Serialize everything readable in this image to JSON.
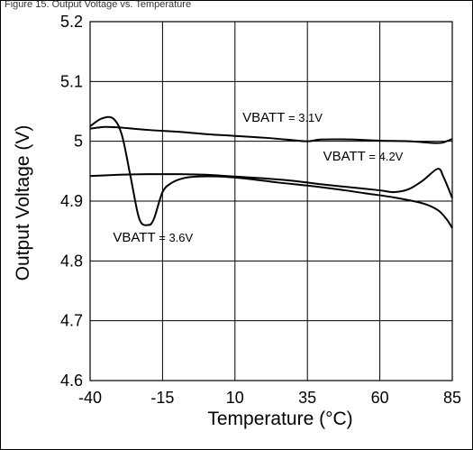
{
  "caption": "Figure 15. Output Voltage vs. Temperature",
  "chart_data": {
    "type": "line",
    "title": "",
    "xlabel": "Temperature (°C)",
    "ylabel": "Output Voltage (V)",
    "xlim": [
      -40,
      85
    ],
    "ylim": [
      4.6,
      5.2
    ],
    "xticks": [
      -40,
      -15,
      10,
      35,
      60,
      85
    ],
    "xtick_labels": [
      "-40",
      "-15",
      "10",
      "35",
      "60",
      "85"
    ],
    "yticks": [
      4.6,
      4.7,
      4.8,
      4.9,
      5.0,
      5.1,
      5.2
    ],
    "ytick_labels": [
      "4.6",
      "4.7",
      "4.8",
      "4.9",
      "5",
      "5.1",
      "5.2"
    ],
    "grid": true,
    "series": [
      {
        "name": "VBATT = 3.1V",
        "label_main": "VBATT",
        "label_suffix": " = 3.1V",
        "label_at": [
          12.6,
          5.033
        ],
        "x": [
          -40,
          -35,
          -30,
          -20,
          -10,
          0,
          10,
          20,
          30,
          35,
          40,
          50,
          60,
          70,
          80,
          83,
          85
        ],
        "y": [
          5.021,
          5.024,
          5.023,
          5.019,
          5.016,
          5.012,
          5.009,
          5.006,
          5.002,
          5.0,
          5.003,
          5.003,
          5.001,
          5.0,
          4.997,
          5.0,
          5.004
        ]
      },
      {
        "name": "VBATT = 4.2V",
        "label_main": "VBATT",
        "label_suffix": " = 4.2V",
        "label_at": [
          40.4,
          4.968
        ],
        "x": [
          -40,
          -30,
          -20,
          -10,
          0,
          10,
          20,
          30,
          40,
          50,
          60,
          65,
          70,
          75,
          80,
          82,
          85
        ],
        "y": [
          4.942,
          4.944,
          4.945,
          4.945,
          4.944,
          4.941,
          4.938,
          4.934,
          4.928,
          4.923,
          4.918,
          4.915,
          4.92,
          4.935,
          4.954,
          4.94,
          4.905
        ]
      },
      {
        "name": "VBATT = 3.6V",
        "label_main": "VBATT",
        "label_suffix": " = 3.6V",
        "label_at": [
          -32.1,
          4.832
        ],
        "x": [
          -40,
          -36,
          -32,
          -29,
          -26,
          -23,
          -20,
          -18,
          -15,
          -12,
          -8,
          -3,
          5,
          15,
          25,
          35,
          45,
          55,
          65,
          75,
          80,
          83,
          85
        ],
        "y": [
          5.025,
          5.038,
          5.038,
          5.01,
          4.94,
          4.87,
          4.86,
          4.87,
          4.915,
          4.93,
          4.938,
          4.941,
          4.941,
          4.937,
          4.931,
          4.926,
          4.92,
          4.913,
          4.906,
          4.896,
          4.885,
          4.87,
          4.855
        ]
      }
    ]
  },
  "colors": {
    "line": "#000000",
    "grid": "#000000",
    "background": "#ffffff"
  }
}
